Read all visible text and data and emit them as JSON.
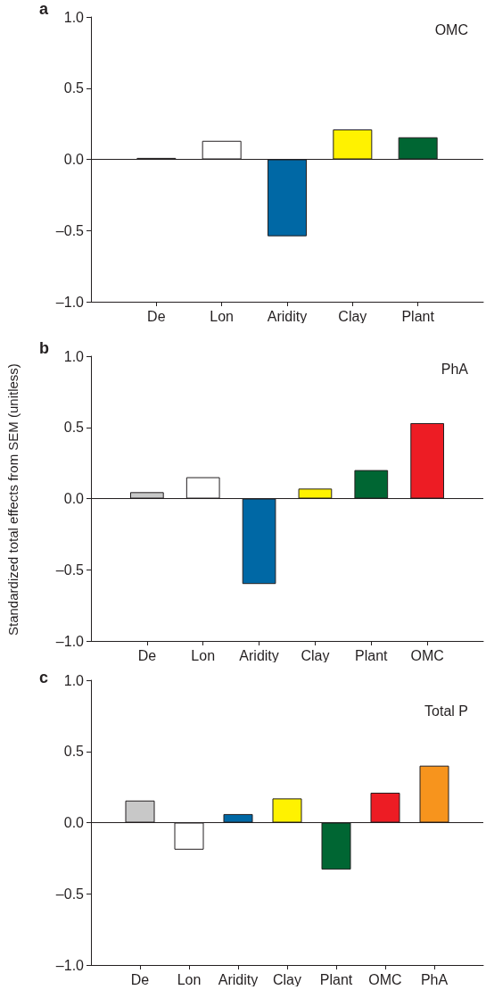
{
  "chart_data": [
    {
      "type": "bar",
      "title": "OMC",
      "annotations": [
        "a"
      ],
      "categories": [
        null,
        "De",
        "Lon",
        "Aridity",
        "Clay",
        "Plant",
        null
      ],
      "values": [
        null,
        0.01,
        0.13,
        -0.54,
        0.21,
        0.155,
        null
      ],
      "colors": [
        "#ffffff",
        "#c8c8c8",
        "#ffffff",
        "#0068a5",
        "#fff200",
        "#006633",
        "#ffffff"
      ],
      "ylim": [
        -1,
        1
      ],
      "yticks": [
        {
          "value": -1,
          "label": "–1.0"
        },
        {
          "value": -0.5,
          "label": "–0.5"
        },
        {
          "value": 0,
          "label": "0.0"
        },
        {
          "value": 0.5,
          "label": "0.5"
        },
        {
          "value": 1,
          "label": "1.0"
        }
      ],
      "ref_lines": [
        {
          "axis": "y",
          "value": 0,
          "color": "#231f20"
        }
      ],
      "grid": false
    },
    {
      "type": "bar",
      "title": "PhA",
      "annotations": [
        "b"
      ],
      "ylabel": "Standardized total effects from SEM (unitless)",
      "categories": [
        null,
        "De",
        "Lon",
        "Aridity",
        "Clay",
        "Plant",
        "OMC",
        null
      ],
      "values": [
        null,
        0.045,
        0.15,
        -0.6,
        0.07,
        0.2,
        0.53,
        null
      ],
      "colors": [
        "#ffffff",
        "#c8c8c8",
        "#ffffff",
        "#0068a5",
        "#fff200",
        "#006633",
        "#ed1c24",
        "#ffffff"
      ],
      "ylim": [
        -1,
        1
      ],
      "yticks": [
        {
          "value": -1,
          "label": "–1.0"
        },
        {
          "value": -0.5,
          "label": "–0.5"
        },
        {
          "value": 0,
          "label": "0.0"
        },
        {
          "value": 0.5,
          "label": "0.5"
        },
        {
          "value": 1,
          "label": "1.0"
        }
      ],
      "ref_lines": [
        {
          "axis": "y",
          "value": 0,
          "color": "#231f20"
        }
      ],
      "grid": false
    },
    {
      "type": "bar",
      "title": "Total P",
      "annotations": [
        "c"
      ],
      "categories": [
        null,
        "De",
        "Lon",
        "Aridity",
        "Clay",
        "Plant",
        "OMC",
        "PhA",
        null
      ],
      "values": [
        null,
        0.155,
        -0.19,
        0.06,
        0.17,
        -0.33,
        0.21,
        0.4,
        null
      ],
      "colors": [
        "#ffffff",
        "#c8c8c8",
        "#ffffff",
        "#0068a5",
        "#fff200",
        "#006633",
        "#ed1c24",
        "#f7941d",
        "#ffffff"
      ],
      "ylim": [
        -1,
        1
      ],
      "yticks": [
        {
          "value": -1,
          "label": "–1.0"
        },
        {
          "value": -0.5,
          "label": "–0.5"
        },
        {
          "value": 0,
          "label": "0.0"
        },
        {
          "value": 0.5,
          "label": "0.5"
        },
        {
          "value": 1,
          "label": "1.0"
        }
      ],
      "ref_lines": [
        {
          "axis": "y",
          "value": 0,
          "color": "#231f20"
        }
      ],
      "grid": false
    }
  ]
}
